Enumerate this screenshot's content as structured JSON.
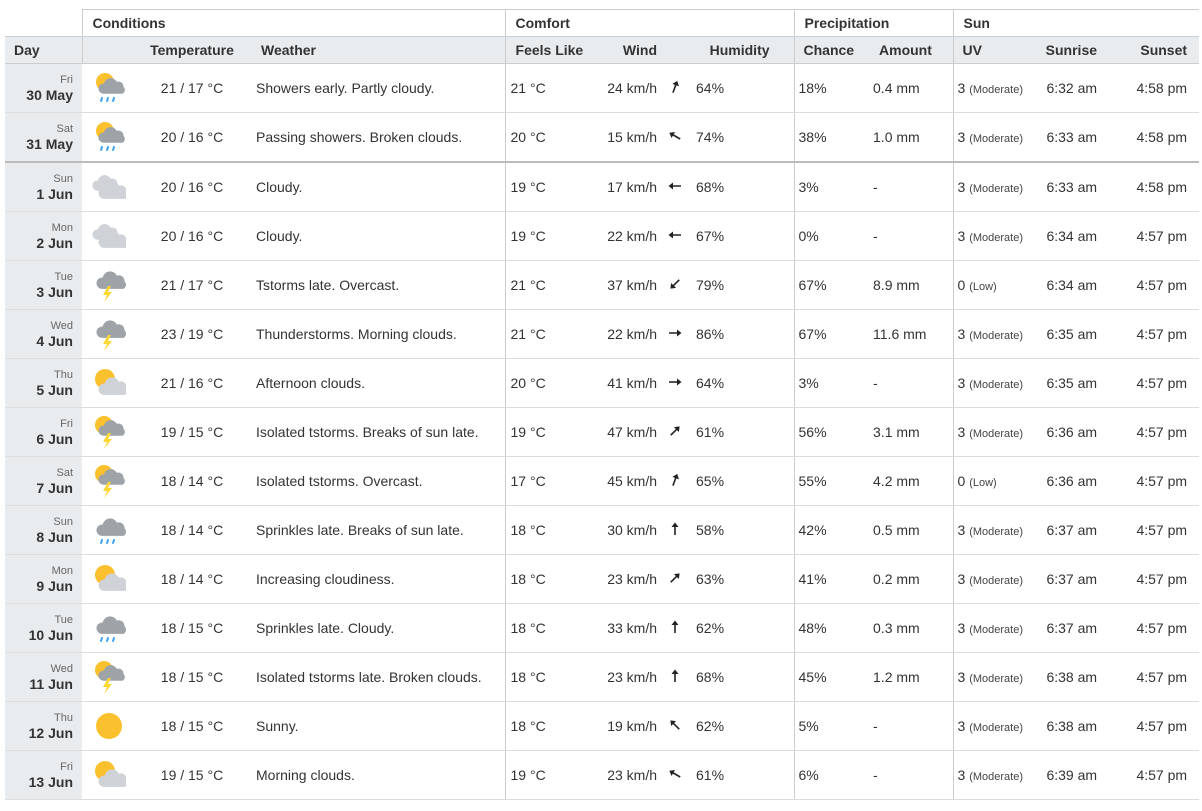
{
  "groups": {
    "conditions": "Conditions",
    "comfort": "Comfort",
    "precipitation": "Precipitation",
    "sun": "Sun"
  },
  "headers": {
    "day": "Day",
    "temperature": "Temperature",
    "weather": "Weather",
    "feels_like": "Feels Like",
    "wind": "Wind",
    "humidity": "Humidity",
    "chance": "Chance",
    "amount": "Amount",
    "uv": "UV",
    "sunrise": "Sunrise",
    "sunset": "Sunset"
  },
  "rows": [
    {
      "dow": "Fri",
      "date": "30 May",
      "icon": "sun-cloud-rain-icon",
      "temp": "21 / 17 °C",
      "weather": "Showers early. Partly cloudy.",
      "feels": "21 °C",
      "wind": "24 km/h",
      "wind_dir_deg": 20,
      "humidity": "64%",
      "chance": "18%",
      "amount": "0.4 mm",
      "uv": "3",
      "uv_level": "(Moderate)",
      "sunrise": "6:32 am",
      "sunset": "4:58 pm"
    },
    {
      "dow": "Sat",
      "date": "31 May",
      "icon": "sun-cloud-rain-icon",
      "temp": "20 / 16 °C",
      "weather": "Passing showers. Broken clouds.",
      "feels": "20 °C",
      "wind": "15 km/h",
      "wind_dir_deg": -60,
      "humidity": "74%",
      "chance": "38%",
      "amount": "1.0 mm",
      "uv": "3",
      "uv_level": "(Moderate)",
      "sunrise": "6:33 am",
      "sunset": "4:58 pm"
    },
    {
      "dow": "Sun",
      "date": "1 Jun",
      "icon": "cloudy-icon",
      "temp": "20 / 16 °C",
      "weather": "Cloudy.",
      "feels": "19 °C",
      "wind": "17 km/h",
      "wind_dir_deg": -90,
      "humidity": "68%",
      "chance": "3%",
      "amount": "-",
      "uv": "3",
      "uv_level": "(Moderate)",
      "sunrise": "6:33 am",
      "sunset": "4:58 pm"
    },
    {
      "dow": "Mon",
      "date": "2 Jun",
      "icon": "cloudy-icon",
      "temp": "20 / 16 °C",
      "weather": "Cloudy.",
      "feels": "19 °C",
      "wind": "22 km/h",
      "wind_dir_deg": -90,
      "humidity": "67%",
      "chance": "0%",
      "amount": "-",
      "uv": "3",
      "uv_level": "(Moderate)",
      "sunrise": "6:34 am",
      "sunset": "4:57 pm"
    },
    {
      "dow": "Tue",
      "date": "3 Jun",
      "icon": "thunderstorm-icon",
      "temp": "21 / 17 °C",
      "weather": "Tstorms late. Overcast.",
      "feels": "21 °C",
      "wind": "37 km/h",
      "wind_dir_deg": -135,
      "humidity": "79%",
      "chance": "67%",
      "amount": "8.9 mm",
      "uv": "0",
      "uv_level": "(Low)",
      "sunrise": "6:34 am",
      "sunset": "4:57 pm"
    },
    {
      "dow": "Wed",
      "date": "4 Jun",
      "icon": "thunderstorm-icon",
      "temp": "23 / 19 °C",
      "weather": "Thunderstorms. Morning clouds.",
      "feels": "21 °C",
      "wind": "22 km/h",
      "wind_dir_deg": 90,
      "humidity": "86%",
      "chance": "67%",
      "amount": "11.6 mm",
      "uv": "3",
      "uv_level": "(Moderate)",
      "sunrise": "6:35 am",
      "sunset": "4:57 pm"
    },
    {
      "dow": "Thu",
      "date": "5 Jun",
      "icon": "sun-cloud-icon",
      "temp": "21 / 16 °C",
      "weather": "Afternoon clouds.",
      "feels": "20 °C",
      "wind": "41 km/h",
      "wind_dir_deg": 90,
      "humidity": "64%",
      "chance": "3%",
      "amount": "-",
      "uv": "3",
      "uv_level": "(Moderate)",
      "sunrise": "6:35 am",
      "sunset": "4:57 pm"
    },
    {
      "dow": "Fri",
      "date": "6 Jun",
      "icon": "sun-thunderstorm-icon",
      "temp": "19 / 15 °C",
      "weather": "Isolated tstorms. Breaks of sun late.",
      "feels": "19 °C",
      "wind": "47 km/h",
      "wind_dir_deg": 45,
      "humidity": "61%",
      "chance": "56%",
      "amount": "3.1 mm",
      "uv": "3",
      "uv_level": "(Moderate)",
      "sunrise": "6:36 am",
      "sunset": "4:57 pm"
    },
    {
      "dow": "Sat",
      "date": "7 Jun",
      "icon": "sun-thunderstorm-icon",
      "temp": "18 / 14 °C",
      "weather": "Isolated tstorms. Overcast.",
      "feels": "17 °C",
      "wind": "45 km/h",
      "wind_dir_deg": 20,
      "humidity": "65%",
      "chance": "55%",
      "amount": "4.2 mm",
      "uv": "0",
      "uv_level": "(Low)",
      "sunrise": "6:36 am",
      "sunset": "4:57 pm"
    },
    {
      "dow": "Sun",
      "date": "8 Jun",
      "icon": "cloud-rain-icon",
      "temp": "18 / 14 °C",
      "weather": "Sprinkles late. Breaks of sun late.",
      "feels": "18 °C",
      "wind": "30 km/h",
      "wind_dir_deg": 0,
      "humidity": "58%",
      "chance": "42%",
      "amount": "0.5 mm",
      "uv": "3",
      "uv_level": "(Moderate)",
      "sunrise": "6:37 am",
      "sunset": "4:57 pm"
    },
    {
      "dow": "Mon",
      "date": "9 Jun",
      "icon": "sun-cloud-icon",
      "temp": "18 / 14 °C",
      "weather": "Increasing cloudiness.",
      "feels": "18 °C",
      "wind": "23 km/h",
      "wind_dir_deg": 45,
      "humidity": "63%",
      "chance": "41%",
      "amount": "0.2 mm",
      "uv": "3",
      "uv_level": "(Moderate)",
      "sunrise": "6:37 am",
      "sunset": "4:57 pm"
    },
    {
      "dow": "Tue",
      "date": "10 Jun",
      "icon": "cloud-rain-icon",
      "temp": "18 / 15 °C",
      "weather": "Sprinkles late. Cloudy.",
      "feels": "18 °C",
      "wind": "33 km/h",
      "wind_dir_deg": 0,
      "humidity": "62%",
      "chance": "48%",
      "amount": "0.3 mm",
      "uv": "3",
      "uv_level": "(Moderate)",
      "sunrise": "6:37 am",
      "sunset": "4:57 pm"
    },
    {
      "dow": "Wed",
      "date": "11 Jun",
      "icon": "sun-thunderstorm-icon",
      "temp": "18 / 15 °C",
      "weather": "Isolated tstorms late. Broken clouds.",
      "feels": "18 °C",
      "wind": "23 km/h",
      "wind_dir_deg": 0,
      "humidity": "68%",
      "chance": "45%",
      "amount": "1.2 mm",
      "uv": "3",
      "uv_level": "(Moderate)",
      "sunrise": "6:38 am",
      "sunset": "4:57 pm"
    },
    {
      "dow": "Thu",
      "date": "12 Jun",
      "icon": "sun-icon",
      "temp": "18 / 15 °C",
      "weather": "Sunny.",
      "feels": "18 °C",
      "wind": "19 km/h",
      "wind_dir_deg": -45,
      "humidity": "62%",
      "chance": "5%",
      "amount": "-",
      "uv": "3",
      "uv_level": "(Moderate)",
      "sunrise": "6:38 am",
      "sunset": "4:57 pm"
    },
    {
      "dow": "Fri",
      "date": "13 Jun",
      "icon": "sun-cloud-icon",
      "temp": "19 / 15 °C",
      "weather": "Morning clouds.",
      "feels": "19 °C",
      "wind": "23 km/h",
      "wind_dir_deg": -60,
      "humidity": "61%",
      "chance": "6%",
      "amount": "-",
      "uv": "3",
      "uv_level": "(Moderate)",
      "sunrise": "6:39 am",
      "sunset": "4:57 pm"
    }
  ],
  "colors": {
    "sun": "#fbc02d",
    "cloud_light": "#cfd2d6",
    "cloud_dark": "#9ea3a8",
    "rain": "#42a5f5",
    "bolt": "#fdd835",
    "header_bg": "#e8ecef"
  }
}
